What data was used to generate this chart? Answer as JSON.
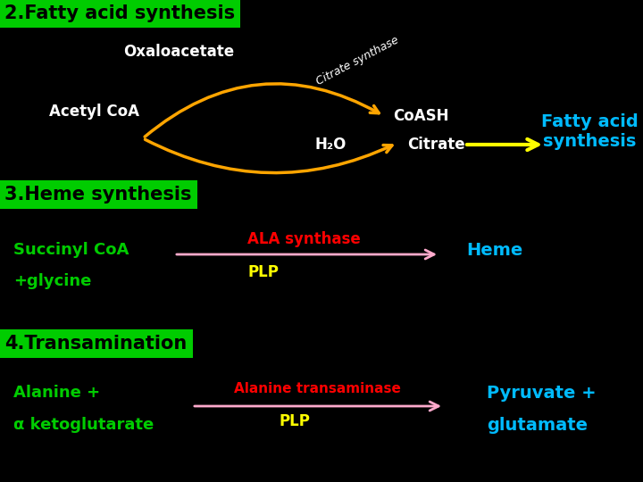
{
  "bg_color": "#000000",
  "green_box": "#00cc00",
  "title2": "2.Fatty acid synthesis",
  "title3": "3.Heme synthesis",
  "title4": "4.Transamination",
  "oxaloacetate_text": "Oxaloacetate",
  "citrate_synthase_text": "Citrate synthase",
  "acetyl_coa_text": "Acetyl CoA",
  "coash_text": "CoASH",
  "h2o_text": "H₂O",
  "citrate_text": "Citrate",
  "fatty_acid_text": "Fatty acid\nsynthesis",
  "succinyl_coa_text": "Succinyl CoA",
  "glycine_text": "+glycine",
  "ala_synthase_text": "ALA synthase",
  "plp1_text": "PLP",
  "heme_text": "Heme",
  "alanine_text": "Alanine +",
  "ketoglutarate_text": "α ketoglutarate",
  "ala_transaminase_text": "Alanine transaminase",
  "plp2_text": "PLP",
  "pyruvate_text": "Pyruvate +",
  "glutamate_text": "glutamate",
  "white": "#ffffff",
  "yellow": "#ffff00",
  "orange": "#FFA500",
  "cyan": "#00bbff",
  "green_text": "#00cc00",
  "red": "#ff0000",
  "pink": "#ffaacc"
}
